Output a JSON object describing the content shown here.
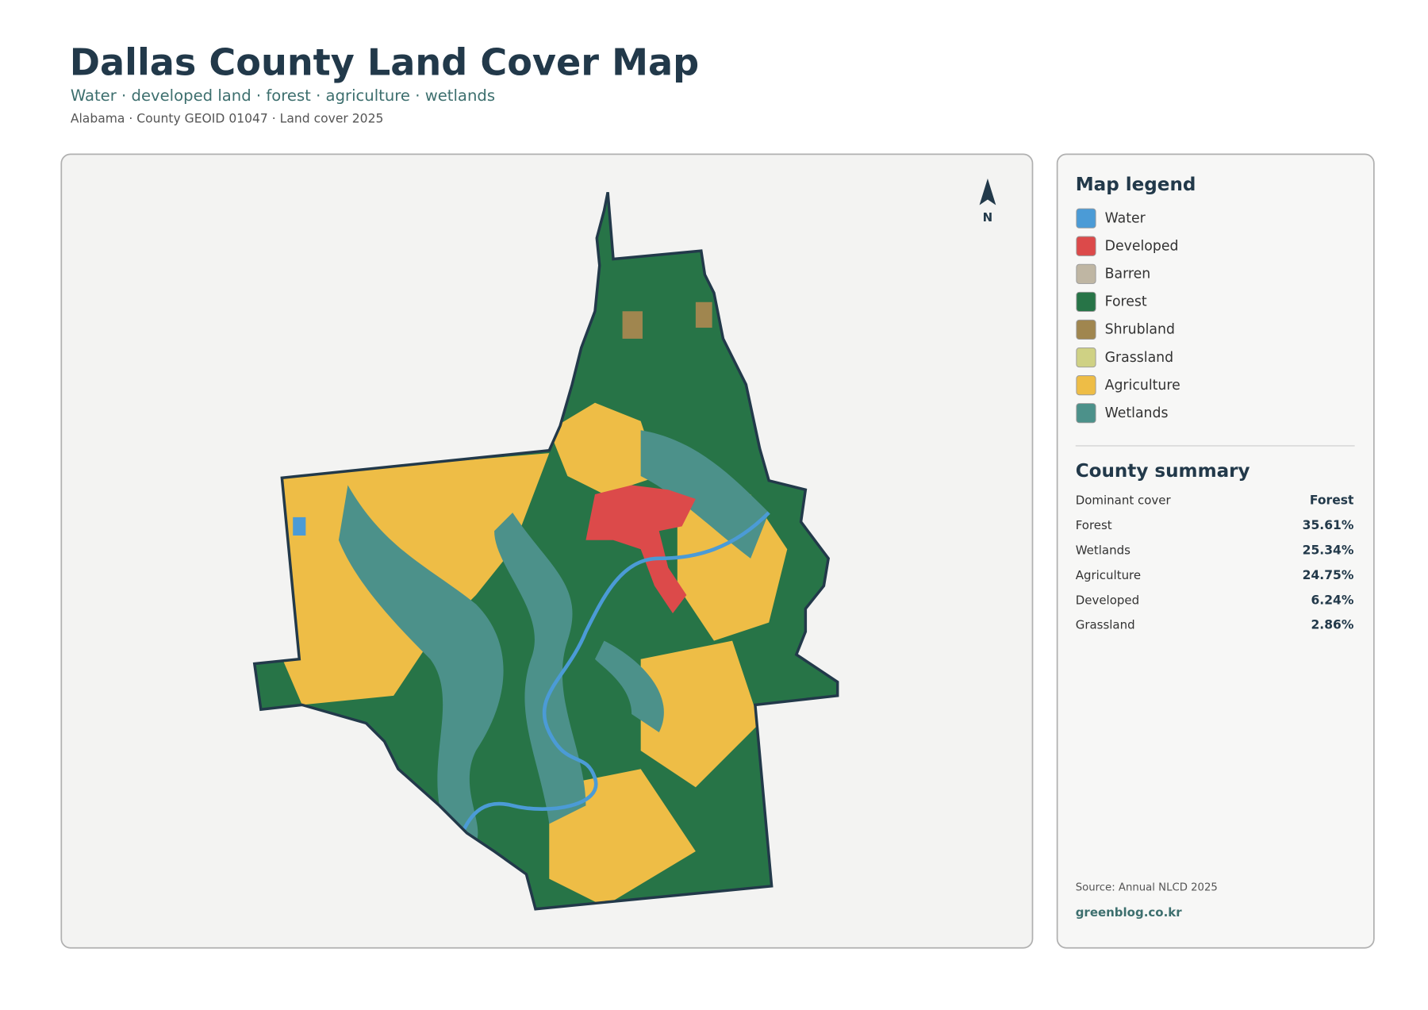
{
  "header": {
    "title": "Dallas County Land Cover Map",
    "subtitle": "Water · developed land · forest · agriculture · wetlands",
    "meta": "Alabama · County GEOID 01047 · Land cover 2025"
  },
  "map": {
    "north_label": "N"
  },
  "legend": {
    "title": "Map legend",
    "items": [
      {
        "label": "Water",
        "color": "#4b9bd6"
      },
      {
        "label": "Developed",
        "color": "#dc4a4a"
      },
      {
        "label": "Barren",
        "color": "#bfb6a3"
      },
      {
        "label": "Forest",
        "color": "#277447"
      },
      {
        "label": "Shrubland",
        "color": "#a0864f"
      },
      {
        "label": "Grassland",
        "color": "#cfd184"
      },
      {
        "label": "Agriculture",
        "color": "#eebd46"
      },
      {
        "label": "Wetlands",
        "color": "#4c918a"
      }
    ]
  },
  "summary": {
    "title": "County summary",
    "rows": [
      [
        "Dominant cover",
        "Forest"
      ],
      [
        "Forest",
        "35.61%"
      ],
      [
        "Wetlands",
        "25.34%"
      ],
      [
        "Agriculture",
        "24.75%"
      ],
      [
        "Developed",
        "6.24%"
      ],
      [
        "Grassland",
        "2.86%"
      ]
    ]
  },
  "footer": {
    "source": "Source: Annual NLCD 2025",
    "website": "greenblog.co.kr"
  }
}
